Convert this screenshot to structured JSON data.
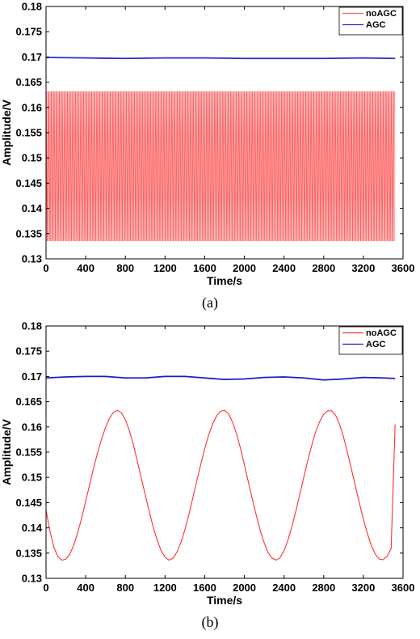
{
  "chart_data": [
    {
      "type": "line",
      "caption": "(a)",
      "xlabel": "Time/s",
      "ylabel": "Amplitude/V",
      "xlim": [
        0,
        3600
      ],
      "ylim": [
        0.13,
        0.18
      ],
      "xticks": [
        "0",
        "400",
        "800",
        "1200",
        "1600",
        "2000",
        "2400",
        "2800",
        "3200",
        "3600"
      ],
      "yticks": [
        "0.13",
        "0.135",
        "0.14",
        "0.145",
        "0.15",
        "0.155",
        "0.16",
        "0.165",
        "0.17",
        "0.175",
        "0.18"
      ],
      "legend_position": "top-right",
      "series": [
        {
          "name": "noAGC",
          "color": "#ff5a5a",
          "style": "dense-oscillation",
          "x_start": 0,
          "x_end": 3520,
          "min": 0.1335,
          "max": 0.1632
        },
        {
          "name": "AGC",
          "color": "#2b2bd6",
          "x": [
            0,
            400,
            800,
            1200,
            1600,
            2000,
            2400,
            2800,
            3200,
            3520
          ],
          "y": [
            0.1699,
            0.1698,
            0.1697,
            0.1698,
            0.1698,
            0.1697,
            0.1697,
            0.1697,
            0.1698,
            0.1697
          ]
        }
      ]
    },
    {
      "type": "line",
      "caption": "(b)",
      "xlabel": "Time/s",
      "ylabel": "Amplitude/V",
      "xlim": [
        0,
        3600
      ],
      "ylim": [
        0.13,
        0.18
      ],
      "xticks": [
        "0",
        "400",
        "800",
        "1200",
        "1600",
        "2000",
        "2400",
        "2800",
        "3200",
        "3600"
      ],
      "yticks": [
        "0.13",
        "0.135",
        "0.14",
        "0.145",
        "0.15",
        "0.155",
        "0.16",
        "0.165",
        "0.17",
        "0.175",
        "0.18"
      ],
      "legend_position": "top-right",
      "series": [
        {
          "name": "noAGC",
          "color": "#ff3030",
          "x": [
            0,
            40,
            80,
            120,
            160,
            200,
            240,
            280,
            320,
            360,
            400,
            440,
            480,
            520,
            560,
            600,
            640,
            680,
            720,
            760,
            800,
            840,
            880,
            920,
            960,
            1000,
            1040,
            1080,
            1120,
            1160,
            1200,
            1240,
            1280,
            1320,
            1360,
            1400,
            1440,
            1480,
            1520,
            1560,
            1600,
            1640,
            1680,
            1720,
            1760,
            1800,
            1840,
            1880,
            1920,
            1960,
            2000,
            2040,
            2080,
            2120,
            2160,
            2200,
            2240,
            2280,
            2320,
            2360,
            2400,
            2440,
            2480,
            2520,
            2560,
            2600,
            2640,
            2680,
            2720,
            2760,
            2800,
            2840,
            2880,
            2920,
            2960,
            3000,
            3040,
            3080,
            3120,
            3160,
            3200,
            3240,
            3280,
            3320,
            3360,
            3400,
            3440,
            3480,
            3520
          ],
          "y": [
            0.1435,
            0.1393,
            0.1361,
            0.1343,
            0.1336,
            0.1338,
            0.1348,
            0.1366,
            0.1391,
            0.142,
            0.1453,
            0.1486,
            0.1519,
            0.1549,
            0.1576,
            0.1599,
            0.1617,
            0.1629,
            0.1633,
            0.1628,
            0.1614,
            0.1593,
            0.1565,
            0.1533,
            0.1499,
            0.1466,
            0.1433,
            0.1402,
            0.1376,
            0.1355,
            0.1342,
            0.1336,
            0.134,
            0.1352,
            0.1371,
            0.1396,
            0.1426,
            0.1459,
            0.1493,
            0.1526,
            0.1557,
            0.1584,
            0.1606,
            0.1622,
            0.1631,
            0.1633,
            0.1626,
            0.161,
            0.1587,
            0.1558,
            0.1525,
            0.1491,
            0.1457,
            0.1425,
            0.1395,
            0.137,
            0.1351,
            0.134,
            0.1336,
            0.1341,
            0.1355,
            0.1376,
            0.1403,
            0.1434,
            0.1467,
            0.1501,
            0.1534,
            0.1564,
            0.1591,
            0.1611,
            0.1625,
            0.1632,
            0.1632,
            0.1623,
            0.1605,
            0.158,
            0.1549,
            0.1516,
            0.1482,
            0.1449,
            0.1417,
            0.1389,
            0.1365,
            0.1348,
            0.1338,
            0.1337,
            0.1344,
            0.1359,
            0.1605
          ]
        },
        {
          "name": "AGC",
          "color": "#1c1cc8",
          "x": [
            0,
            200,
            400,
            600,
            800,
            1000,
            1200,
            1400,
            1600,
            1800,
            2000,
            2200,
            2400,
            2600,
            2800,
            3000,
            3200,
            3400,
            3520
          ],
          "y": [
            0.1697,
            0.1699,
            0.17,
            0.17,
            0.1697,
            0.1697,
            0.17,
            0.17,
            0.1697,
            0.1694,
            0.1695,
            0.1698,
            0.1699,
            0.1697,
            0.1693,
            0.1695,
            0.1698,
            0.1697,
            0.1696
          ]
        }
      ]
    }
  ]
}
